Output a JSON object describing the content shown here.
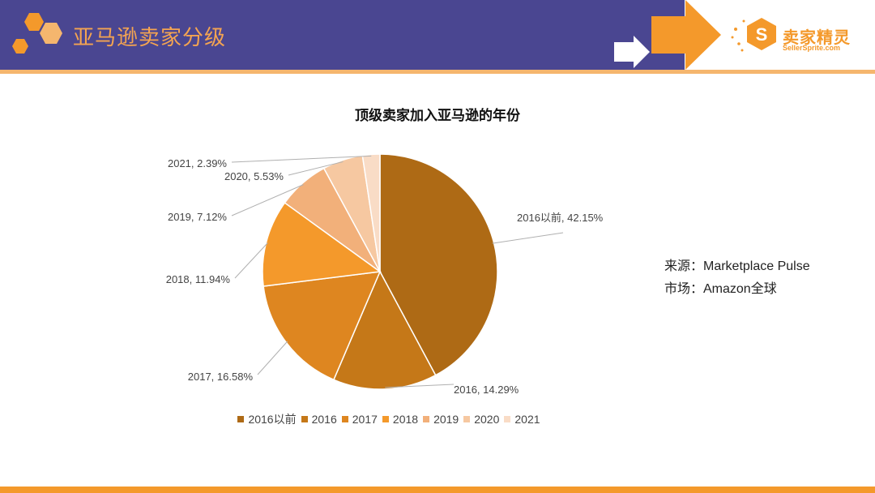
{
  "page": {
    "title": "亚马逊卖家分级"
  },
  "brand": {
    "name": "卖家精灵",
    "site": "SellerSprite.com",
    "color": "#f4992b"
  },
  "colors": {
    "header": "#4a4691",
    "accent": "#f4992b",
    "header_line": "#f5b66e"
  },
  "notes": {
    "source": "来源：Marketplace Pulse",
    "market": "市场：Amazon全球"
  },
  "chart_data": {
    "type": "pie",
    "title": "顶级卖家加入亚马逊的年份",
    "legend_position": "bottom",
    "slices": [
      {
        "name": "2016以前",
        "value": 42.15,
        "label": "2016以前, 42.15%",
        "color": "#ae6a15"
      },
      {
        "name": "2016",
        "value": 14.29,
        "label": "2016, 14.29%",
        "color": "#c57818"
      },
      {
        "name": "2017",
        "value": 16.58,
        "label": "2017, 16.58%",
        "color": "#de8620"
      },
      {
        "name": "2018",
        "value": 11.94,
        "label": "2018, 11.94%",
        "color": "#f4992b"
      },
      {
        "name": "2019",
        "value": 7.12,
        "label": "2019, 7.12%",
        "color": "#f2b07a"
      },
      {
        "name": "2020",
        "value": 5.53,
        "label": "2020, 5.53%",
        "color": "#f6c8a1"
      },
      {
        "name": "2021",
        "value": 2.39,
        "label": "2021, 2.39%",
        "color": "#f9dcc6"
      }
    ]
  }
}
